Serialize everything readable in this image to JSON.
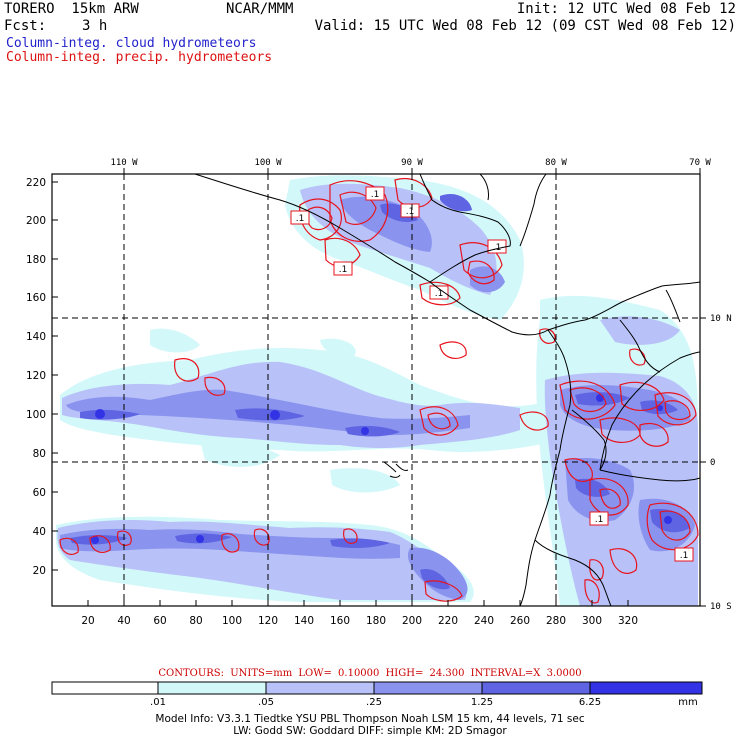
{
  "header": {
    "model_name": "TORERO  15km ARW",
    "center": "NCAR/MMM",
    "init": "Init: 12 UTC Wed 08 Feb 12",
    "fcst_label": "Fcst:",
    "fcst_value": "3 h",
    "valid": "Valid: 15 UTC Wed 08 Feb 12 (09 CST Wed 08 Feb 12)",
    "field_cloud": "Column-integ. cloud hydrometeors",
    "field_precip": "Column-integ. precip. hydrometeors"
  },
  "colors": {
    "cloud_text": "#2222cc",
    "precip_text": "#dd1111",
    "contour": "#e8141e",
    "shade": [
      "#ffffff",
      "#d2f8fa",
      "#b8c2f8",
      "#8a94ee",
      "#5e64e2",
      "#3333e6",
      "#0000f0"
    ]
  },
  "map": {
    "lon_labels": [
      "110 W",
      "100 W",
      "90 W",
      "80 W",
      "70 W"
    ],
    "lat_labels": [
      "10 N",
      "0",
      "10 S"
    ],
    "y_ticks": [
      "220",
      "200",
      "180",
      "160",
      "140",
      "120",
      "100",
      "80",
      "60",
      "40",
      "20"
    ],
    "x_ticks": [
      "20",
      "40",
      "60",
      "80",
      "100",
      "120",
      "140",
      "160",
      "180",
      "200",
      "220",
      "240",
      "260",
      "280",
      "300",
      "320"
    ],
    "contour_boxes": [
      ".1",
      ".1",
      ".1",
      ".1",
      ".1",
      ".1",
      ".1",
      ".1"
    ]
  },
  "contours_note": "CONTOURS:  UNITS=mm  LOW= 0.10000     HIGH=  24.300      INTERVAL=X  3.0000",
  "colorbar": {
    "labels": [
      ".01",
      ".05",
      ".25",
      "1.25",
      "6.25"
    ],
    "units": "mm"
  },
  "model_info": {
    "line1": "Model Info: V3.3.1    Tiedtke YSU PBL   Thompson     Noah LSM  15 km,    44 levels,    71 sec",
    "line2": "LW: Godd SW: Goddard DIFF: simple KM: 2D Smagor"
  }
}
